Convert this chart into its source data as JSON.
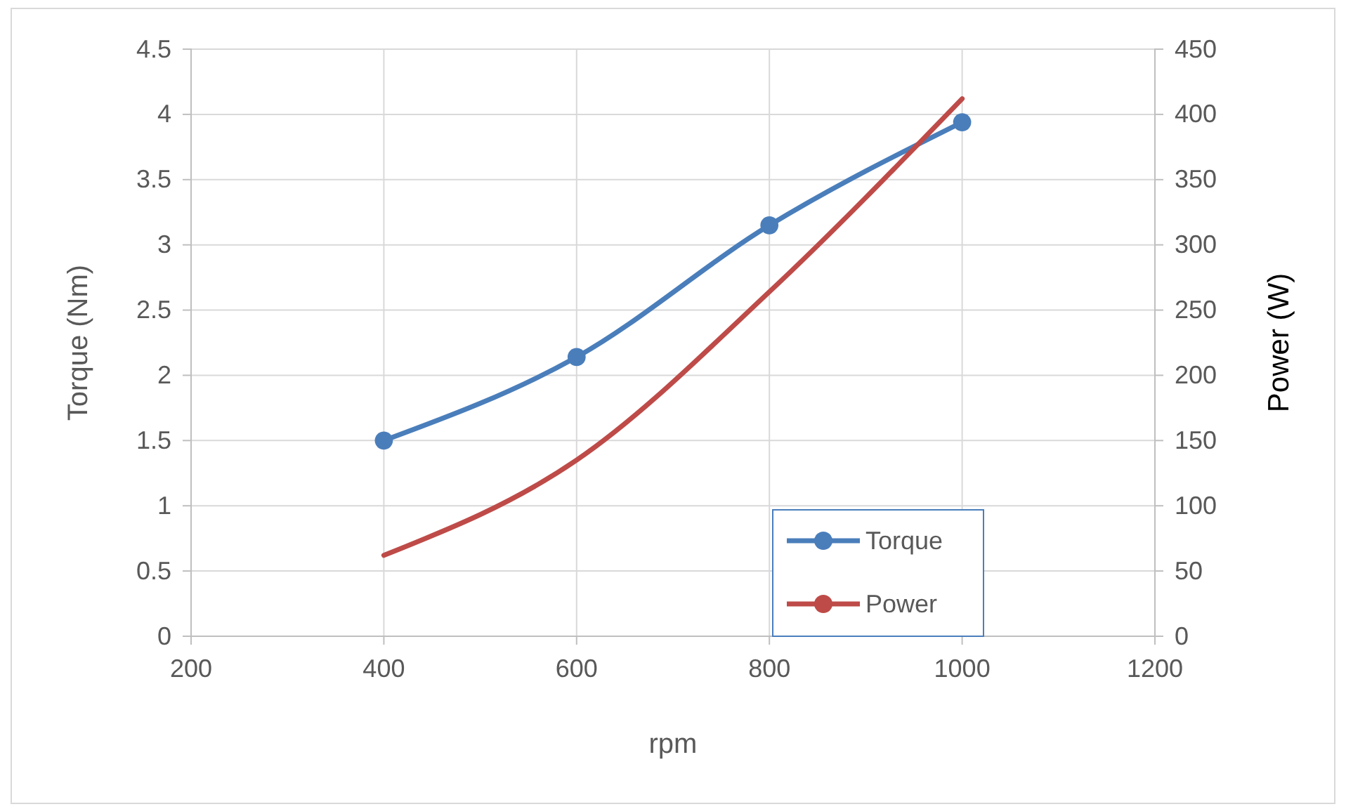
{
  "chart_data": {
    "type": "line",
    "xlabel": "rpm",
    "ylabel": "Torque (Nm)",
    "y2label": "Power (W)",
    "x": [
      400,
      600,
      800,
      1000
    ],
    "series": [
      {
        "name": "Torque",
        "color": "#4a7ebb",
        "values": [
          1.5,
          2.14,
          3.15,
          3.94
        ],
        "marker": "circle"
      },
      {
        "name": "Power",
        "color": "#be4b48",
        "values": [
          62,
          135,
          264,
          412
        ],
        "axis": "y2",
        "marker": "none"
      }
    ],
    "xlim": [
      200,
      1200
    ],
    "xticks": [
      200,
      400,
      600,
      800,
      1000,
      1200
    ],
    "ylim": [
      0,
      4.5
    ],
    "yticks": [
      0,
      0.5,
      1,
      1.5,
      2,
      2.5,
      3,
      3.5,
      4,
      4.5
    ],
    "y2lim": [
      0,
      450
    ],
    "y2ticks": [
      0,
      50,
      100,
      150,
      200,
      250,
      300,
      350,
      400,
      450
    ],
    "grid": true,
    "legend": "bottom right",
    "line_style": "solid"
  }
}
